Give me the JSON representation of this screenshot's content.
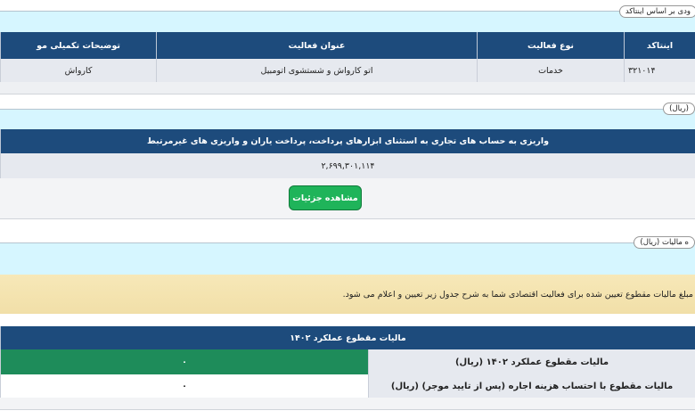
{
  "activity_section": {
    "legend": "ودی بر اساس اینتاکد",
    "table": {
      "headers": [
        "اینتاکد",
        "نوع فعالیت",
        "عنوان فعالیت",
        "توضیحات تکمیلی مو"
      ],
      "rows": [
        [
          "۳۲۱۰۱۴",
          "خدمات",
          "اتو کارواش و شستشوی اتومبیل",
          "کارواش"
        ]
      ]
    }
  },
  "deposit_section": {
    "legend": "(ریال)",
    "header": "واریزی به حساب های تجاری به استثنای ابزارهای پرداخت، پرداخت یاران و واریزی های غیرمرتبط",
    "amount": "۲,۶۹۹,۳۰۱,۱۱۴",
    "button": "مشاهده جزئیات"
  },
  "tax_section": {
    "legend": "ه مالیات (ریال)",
    "notice": "مبلغ مالیات مقطوع تعیین شده برای فعالیت اقتصادی شما به شرح جدول زیر تعیین و اعلام می شود.",
    "table": {
      "header": "مالیات مقطوع عملکرد ۱۴۰۲",
      "rows": [
        [
          "مالیات مقطوع عملکرد ۱۴۰۲ (ریال)",
          "۰"
        ],
        [
          "مالیات مقطوع با احتساب هزینه اجاره (پس از تایید موجر) (ریال)",
          "۰"
        ]
      ]
    }
  }
}
